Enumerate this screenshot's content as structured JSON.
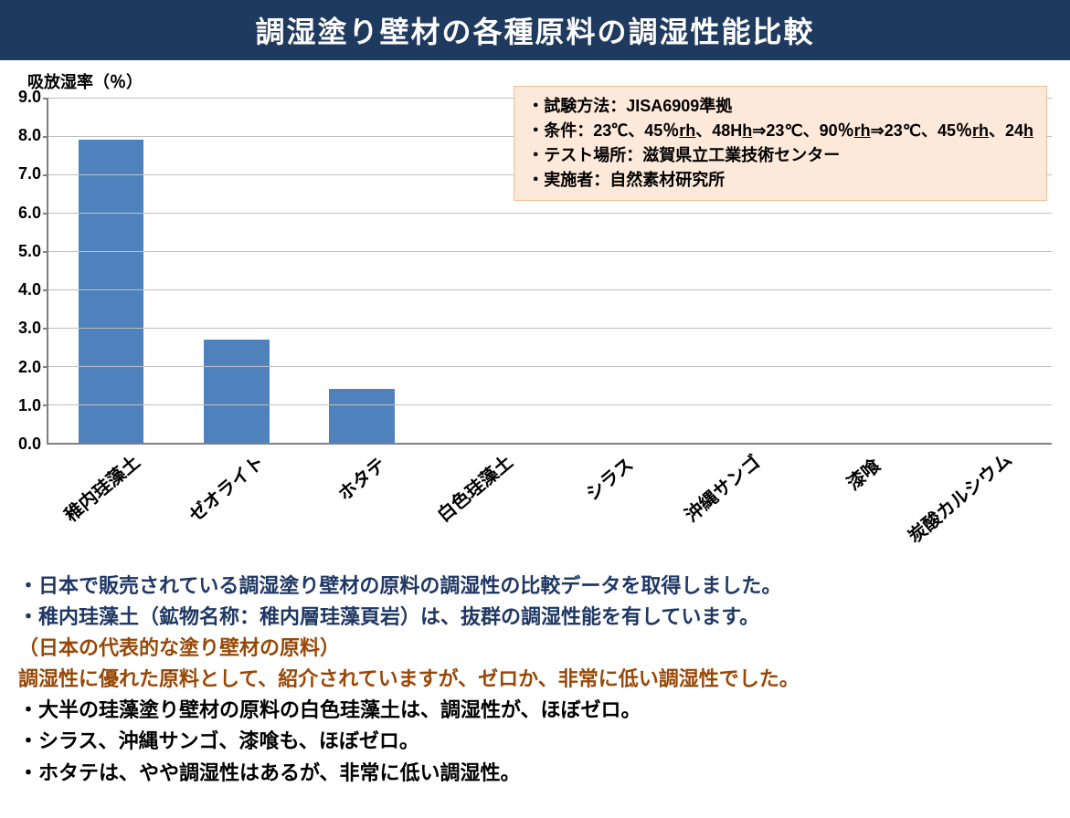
{
  "title": "調湿塗り壁材の各種原料の調湿性能比較",
  "chart": {
    "type": "bar",
    "y_axis_label": "吸放湿率（％）",
    "ylim": [
      0,
      9
    ],
    "ytick_step": 1.0,
    "y_ticks": [
      "9.0",
      "8.0",
      "7.0",
      "6.0",
      "5.0",
      "4.0",
      "3.0",
      "2.0",
      "1.0",
      "0.0"
    ],
    "categories": [
      "稚内珪藻土",
      "ゼオライト",
      "ホタテ",
      "白色珪藻土",
      "シラス",
      "沖縄サンゴ",
      "漆喰",
      "炭酸カルシウム"
    ],
    "values": [
      7.9,
      2.7,
      1.4,
      0.0,
      0.0,
      0.0,
      0.0,
      0.0
    ],
    "bar_color": "#4f81bd",
    "grid_color": "#bfbfbf",
    "axis_color": "#808080",
    "background_color": "#ffffff",
    "label_fontsize": 20,
    "tick_fontsize": 18,
    "bar_width": 0.52
  },
  "info_box": {
    "background_color": "#fde9d9",
    "border_color": "#f0c090",
    "lines": [
      {
        "prefix": "・試験方法：",
        "rest": "JISA6909準拠"
      },
      {
        "prefix": "・条件：",
        "rest": "23℃、45％rh、48Hh⇒23℃、90％rh⇒23℃、45％rh、24h",
        "underline_tokens": [
          "rh",
          "rh",
          "rh",
          "h"
        ]
      },
      {
        "prefix": "・テスト場所：",
        "rest": "滋賀県立工業技術センター"
      },
      {
        "prefix": "・実施者：",
        "rest": "自然素材研究所"
      }
    ],
    "line1": "・試験方法：JISA6909準拠",
    "line2_html": "・条件：23℃、45％<span class=\"uline\">rh</span>、48H<span class=\"uline\">h</span>⇒23℃、90％<span class=\"uline\">rh</span>⇒23℃、45％<span class=\"uline\">rh</span>、24<span class=\"uline\">h</span>",
    "line3": "・テスト場所：滋賀県立工業技術センター",
    "line4": "・実施者：自然素材研究所"
  },
  "commentary": {
    "lines": [
      {
        "color": "navy",
        "text": "・日本で販売されている調湿塗り壁材の原料の調湿性の比較データを取得しました。"
      },
      {
        "color": "navy",
        "text": "・稚内珪藻土（鉱物名称：稚内層珪藻頁岩）は、抜群の調湿性能を有しています。"
      },
      {
        "color": "maroon",
        "text": "（日本の代表的な塗り壁材の原料）"
      },
      {
        "color": "maroon",
        "text": "調湿性に優れた原料として、紹介されていますが、ゼロか、非常に低い調湿性でした。"
      },
      {
        "color": "black",
        "text": "・大半の珪藻塗り壁材の原料の白色珪藻土は、調湿性が、ほぼゼロ。"
      },
      {
        "color": "black",
        "text": "・シラス、沖縄サンゴ、漆喰も、ほぼゼロ。"
      },
      {
        "color": "black",
        "text": "・ホタテは、やや調湿性はあるが、非常に低い調湿性。"
      }
    ]
  }
}
